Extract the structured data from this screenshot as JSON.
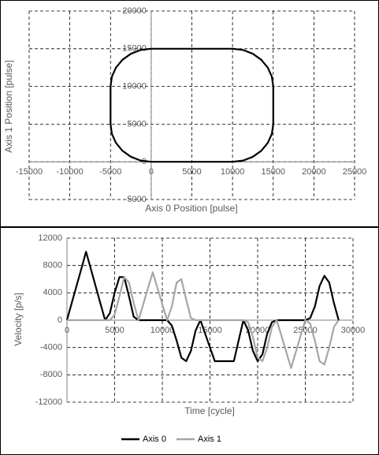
{
  "chart_data": [
    {
      "type": "line",
      "x_label": "Axis 0 Position [pulse]",
      "y_label": "Axis 1 Position [pulse]",
      "x": [
        0,
        10000,
        11294,
        12500,
        13536,
        14330,
        14830,
        15000,
        15000,
        14830,
        14330,
        13536,
        12500,
        11294,
        10000,
        0,
        -1294,
        -2500,
        -3536,
        -4330,
        -4830,
        -5000,
        -5000,
        -4830,
        -4330,
        -3536,
        -2500,
        -1294,
        0
      ],
      "values": [
        0,
        0,
        170,
        670,
        1464,
        2500,
        3706,
        5000,
        10000,
        11294,
        12500,
        13536,
        14330,
        14830,
        15000,
        15000,
        14830,
        14330,
        13536,
        12500,
        11294,
        10000,
        5000,
        3706,
        2500,
        1464,
        670,
        170,
        0
      ],
      "color": "#000000",
      "xlim": [
        -15000,
        25000
      ],
      "xticks": [
        -15000,
        -10000,
        -5000,
        0,
        5000,
        10000,
        15000,
        20000,
        25000
      ],
      "ylim": [
        -5000,
        20000
      ],
      "yticks": [
        -5000,
        0,
        5000,
        10000,
        15000,
        20000
      ],
      "grid": true
    },
    {
      "type": "line",
      "x_label": "Time [cycle]",
      "y_label": "Velocity [p/s]",
      "x": [
        0,
        500,
        1000,
        1500,
        2000,
        2500,
        3000,
        3500,
        4000,
        4500,
        5000,
        5500,
        6000,
        6500,
        7000,
        7500,
        8000,
        8500,
        9000,
        9500,
        10000,
        10500,
        11000,
        11500,
        12000,
        12500,
        13000,
        13500,
        14000,
        14500,
        15000,
        15500,
        16000,
        16500,
        17000,
        17500,
        18000,
        18500,
        19000,
        19500,
        20000,
        20500,
        21000,
        21500,
        22000,
        22500,
        23000,
        23500,
        24000,
        24500,
        25000,
        25500,
        26000,
        26500,
        27000,
        27500,
        28000,
        28500
      ],
      "series": [
        {
          "name": "Axis 0",
          "color": "#000000",
          "values": [
            0,
            2500,
            5000,
            7500,
            10000,
            7500,
            5000,
            2500,
            0,
            1000,
            4000,
            6300,
            6300,
            3500,
            500,
            0,
            0,
            0,
            0,
            0,
            0,
            0,
            -800,
            -3000,
            -5500,
            -6000,
            -4500,
            -1500,
            0,
            -2000,
            -4000,
            -6000,
            -6000,
            -6000,
            -6000,
            -6000,
            -3000,
            0,
            -1500,
            -4500,
            -6000,
            -5000,
            -2000,
            -300,
            0,
            0,
            0,
            0,
            0,
            0,
            0,
            300,
            2000,
            5000,
            6500,
            5500,
            2500,
            0
          ]
        },
        {
          "name": "Axis 1",
          "color": "#a6a6a6",
          "values": [
            0,
            0,
            0,
            0,
            0,
            0,
            0,
            0,
            0,
            0,
            800,
            3500,
            6300,
            5500,
            2500,
            0,
            2333,
            4667,
            7000,
            4667,
            2333,
            0,
            2000,
            5500,
            6000,
            3000,
            300,
            0,
            0,
            0,
            0,
            0,
            0,
            0,
            0,
            0,
            0,
            0,
            -300,
            -2500,
            -5500,
            -6000,
            -4000,
            -1000,
            0,
            -2333,
            -4667,
            -7000,
            -4667,
            -2333,
            0,
            -500,
            -3000,
            -6000,
            -6500,
            -4000,
            -1000,
            0
          ]
        }
      ],
      "xlim": [
        0,
        30000
      ],
      "xticks": [
        0,
        5000,
        10000,
        15000,
        20000,
        25000,
        30000
      ],
      "ylim": [
        -12000,
        12000
      ],
      "yticks": [
        -12000,
        -8000,
        -4000,
        0,
        4000,
        8000,
        12000
      ],
      "grid": true,
      "legend": "bottom"
    }
  ]
}
